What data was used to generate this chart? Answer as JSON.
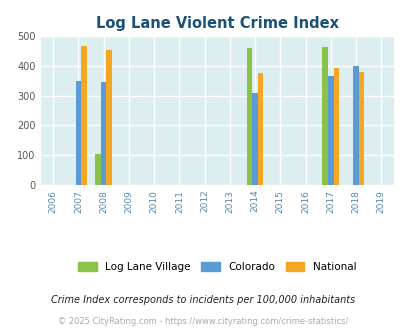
{
  "title": "Log Lane Violent Crime Index",
  "years": [
    2006,
    2007,
    2008,
    2009,
    2010,
    2011,
    2012,
    2013,
    2014,
    2015,
    2016,
    2017,
    2018,
    2019
  ],
  "data": {
    "Log Lane Village": {
      "2008": 105,
      "2014": 460,
      "2017": 465
    },
    "Colorado": {
      "2007": 349,
      "2008": 345,
      "2014": 308,
      "2017": 365,
      "2018": 399
    },
    "National": {
      "2007": 467,
      "2008": 454,
      "2014": 376,
      "2017": 394,
      "2018": 379
    }
  },
  "bar_colors": {
    "Log Lane Village": "#8bc34a",
    "Colorado": "#5b9bd5",
    "National": "#f5a623"
  },
  "ylim": [
    0,
    500
  ],
  "yticks": [
    0,
    100,
    200,
    300,
    400,
    500
  ],
  "background_color": "#ddeef0",
  "grid_color": "#ffffff",
  "title_color": "#1a5276",
  "legend_labels": [
    "Log Lane Village",
    "Colorado",
    "National"
  ],
  "footnote1": "Crime Index corresponds to incidents per 100,000 inhabitants",
  "footnote2": "© 2025 CityRating.com - https://www.cityrating.com/crime-statistics/",
  "bar_width": 0.22
}
